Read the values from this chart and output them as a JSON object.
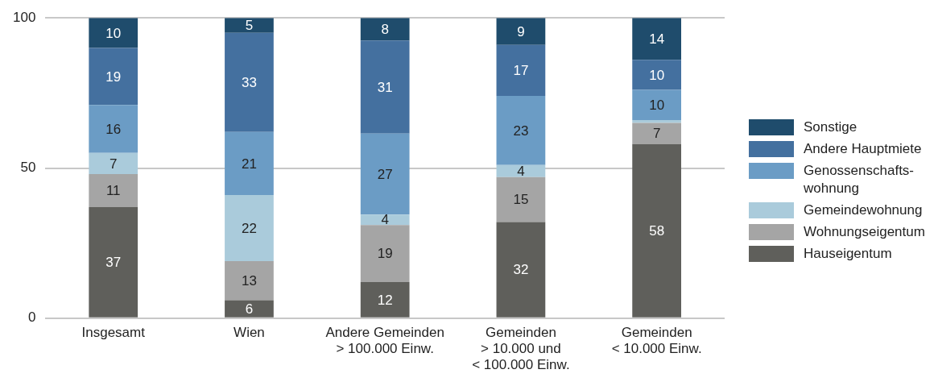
{
  "chart_data": {
    "type": "bar",
    "stacked": true,
    "categories": [
      "Insgesamt",
      "Wien",
      "Andere Gemeinden\n> 100.000 Einw.",
      "Gemeinden\n> 10.000 und\n< 100.000 Einw.",
      "Gemeinden\n< 10.000 Einw."
    ],
    "series": [
      {
        "name": "Hauseigentum",
        "color": "#5f5f5b",
        "values": [
          37,
          6,
          12,
          32,
          58
        ],
        "value_labels": [
          "37",
          "6",
          "12",
          "32",
          "58"
        ]
      },
      {
        "name": "Wohnungseigentum",
        "color": "#a5a5a5",
        "values": [
          11,
          13,
          19,
          15,
          7
        ],
        "value_labels": [
          "11",
          "13",
          "19",
          "15",
          "7"
        ]
      },
      {
        "name": "Gemeindewohnung",
        "color": "#aacbdb",
        "values": [
          7,
          22,
          3.5,
          4,
          1
        ],
        "value_labels": [
          "7",
          "22",
          "4",
          "4",
          null
        ]
      },
      {
        "name": "Genossenschafts-\nwohnung",
        "color": "#6b9cc5",
        "values": [
          16,
          21,
          27,
          23,
          10
        ],
        "value_labels": [
          "16",
          "21",
          "27",
          "23",
          "10"
        ]
      },
      {
        "name": "Andere Hauptmiete",
        "color": "#44709f",
        "values": [
          19,
          33,
          31,
          17,
          10
        ],
        "value_labels": [
          "19",
          "33",
          "31",
          "17",
          "10"
        ]
      },
      {
        "name": "Sonstige",
        "color": "#1f4c6c",
        "values": [
          10,
          5,
          7.5,
          9,
          14
        ],
        "value_labels": [
          "10",
          "5",
          "8",
          "9",
          "14"
        ]
      }
    ],
    "ylim": [
      0,
      100
    ],
    "yticks": [
      0,
      50,
      100
    ],
    "grid": "y",
    "legend": "right"
  }
}
